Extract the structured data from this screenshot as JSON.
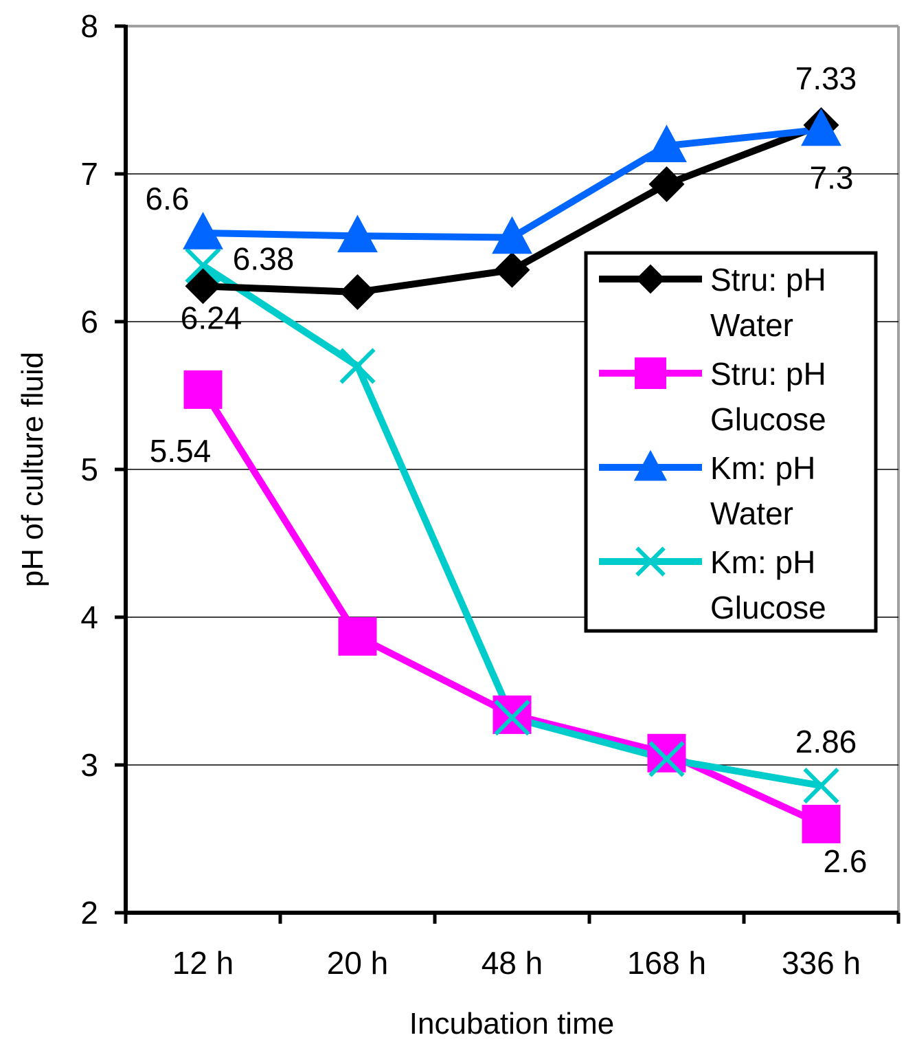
{
  "chart_data": {
    "type": "line",
    "title": "",
    "xlabel": "Incubation time",
    "ylabel": "pH of culture fluid",
    "categories": [
      "12 h",
      "20 h",
      "48 h",
      "168 h",
      "336 h"
    ],
    "ylim": [
      2,
      8
    ],
    "yticks": [
      "2",
      "3",
      "4",
      "5",
      "6",
      "7",
      "8"
    ],
    "grid": "horizontal major",
    "legend_position": "right",
    "series": [
      {
        "name": "Stru: pH Water",
        "name_lines": [
          "Stru: pH",
          "Water"
        ],
        "values": [
          6.24,
          6.2,
          6.35,
          6.93,
          7.33
        ],
        "color": "#000000",
        "marker": "diamond"
      },
      {
        "name": "Stru: pH Glucose",
        "name_lines": [
          "Stru: pH",
          "Glucose"
        ],
        "values": [
          5.54,
          3.87,
          3.34,
          3.08,
          2.6
        ],
        "color": "#ff00ff",
        "marker": "square"
      },
      {
        "name": "Km: pH Water",
        "name_lines": [
          "Km: pH",
          "Water"
        ],
        "values": [
          6.6,
          6.58,
          6.57,
          7.19,
          7.3
        ],
        "color": "#0066ff",
        "marker": "triangle"
      },
      {
        "name": "Km: pH Glucose",
        "name_lines": [
          "Km: pH",
          "Glucose"
        ],
        "values": [
          6.38,
          5.7,
          3.32,
          3.04,
          2.86
        ],
        "color": "#00cccc",
        "marker": "x"
      }
    ],
    "data_labels": [
      {
        "text": "6.24",
        "series": 0,
        "index": 0,
        "placement": "below"
      },
      {
        "text": "7.33",
        "series": 0,
        "index": 4,
        "placement": "above"
      },
      {
        "text": "5.54",
        "series": 1,
        "index": 0,
        "placement": "below"
      },
      {
        "text": "2.6",
        "series": 1,
        "index": 4,
        "placement": "below"
      },
      {
        "text": "6.6",
        "series": 2,
        "index": 0,
        "placement": "above"
      },
      {
        "text": "7.3",
        "series": 2,
        "index": 4,
        "placement": "below"
      },
      {
        "text": "6.38",
        "series": 3,
        "index": 0,
        "placement": "right"
      },
      {
        "text": "2.86",
        "series": 3,
        "index": 4,
        "placement": "above"
      }
    ]
  }
}
